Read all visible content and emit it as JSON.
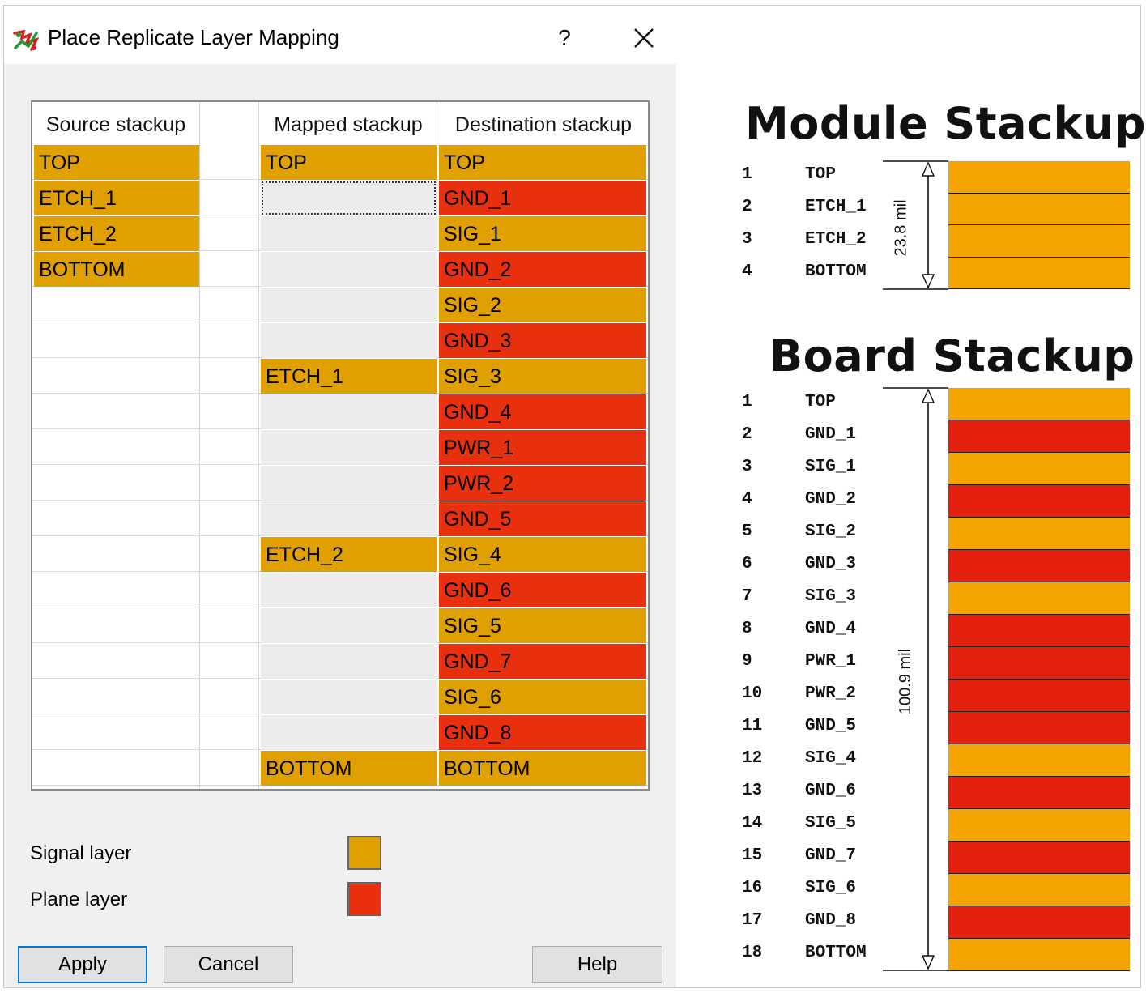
{
  "dialog": {
    "title": "Place Replicate Layer Mapping",
    "help_glyph": "?",
    "columns": {
      "source": "Source stackup",
      "mapped": "Mapped stackup",
      "destination": "Destination stackup"
    },
    "rows": [
      {
        "source": "TOP",
        "mapped": "TOP",
        "destination": "TOP",
        "dest_type": "signal"
      },
      {
        "source": "ETCH_1",
        "mapped": "",
        "destination": "GND_1",
        "dest_type": "plane"
      },
      {
        "source": "ETCH_2",
        "mapped": "",
        "destination": "SIG_1",
        "dest_type": "signal"
      },
      {
        "source": "BOTTOM",
        "mapped": "",
        "destination": "GND_2",
        "dest_type": "plane"
      },
      {
        "source": "",
        "mapped": "",
        "destination": "SIG_2",
        "dest_type": "signal"
      },
      {
        "source": "",
        "mapped": "",
        "destination": "GND_3",
        "dest_type": "plane"
      },
      {
        "source": "",
        "mapped": "ETCH_1",
        "destination": "SIG_3",
        "dest_type": "signal"
      },
      {
        "source": "",
        "mapped": "",
        "destination": "GND_4",
        "dest_type": "plane"
      },
      {
        "source": "",
        "mapped": "",
        "destination": "PWR_1",
        "dest_type": "plane"
      },
      {
        "source": "",
        "mapped": "",
        "destination": "PWR_2",
        "dest_type": "plane"
      },
      {
        "source": "",
        "mapped": "",
        "destination": "GND_5",
        "dest_type": "plane"
      },
      {
        "source": "",
        "mapped": "ETCH_2",
        "destination": "SIG_4",
        "dest_type": "signal"
      },
      {
        "source": "",
        "mapped": "",
        "destination": "GND_6",
        "dest_type": "plane"
      },
      {
        "source": "",
        "mapped": "",
        "destination": "SIG_5",
        "dest_type": "signal"
      },
      {
        "source": "",
        "mapped": "",
        "destination": "GND_7",
        "dest_type": "plane"
      },
      {
        "source": "",
        "mapped": "",
        "destination": "SIG_6",
        "dest_type": "signal"
      },
      {
        "source": "",
        "mapped": "",
        "destination": "GND_8",
        "dest_type": "plane"
      },
      {
        "source": "",
        "mapped": "BOTTOM",
        "destination": "BOTTOM",
        "dest_type": "signal"
      }
    ],
    "legend": {
      "signal_label": "Signal layer",
      "plane_label": "Plane layer"
    },
    "buttons": {
      "apply": "Apply",
      "cancel": "Cancel",
      "help": "Help"
    }
  },
  "colors": {
    "signal_cell": "#e0a000",
    "plane_cell": "#e8300e",
    "signal_band": "#f5a300",
    "plane_band": "#e3200c",
    "mapped_empty": "#ececec",
    "default_button_border": "#0078d7"
  },
  "module_stackup": {
    "title": "Module Stackup",
    "thickness": "23.8 mil",
    "layers": [
      {
        "num": "1",
        "name": "TOP",
        "type": "signal"
      },
      {
        "num": "2",
        "name": "ETCH_1",
        "type": "signal"
      },
      {
        "num": "3",
        "name": "ETCH_2",
        "type": "signal"
      },
      {
        "num": "4",
        "name": "BOTTOM",
        "type": "signal"
      }
    ]
  },
  "board_stackup": {
    "title": "Board Stackup",
    "thickness": "100.9 mil",
    "layers": [
      {
        "num": "1",
        "name": "TOP",
        "type": "signal"
      },
      {
        "num": "2",
        "name": "GND_1",
        "type": "plane"
      },
      {
        "num": "3",
        "name": "SIG_1",
        "type": "signal"
      },
      {
        "num": "4",
        "name": "GND_2",
        "type": "plane"
      },
      {
        "num": "5",
        "name": "SIG_2",
        "type": "signal"
      },
      {
        "num": "6",
        "name": "GND_3",
        "type": "plane"
      },
      {
        "num": "7",
        "name": "SIG_3",
        "type": "signal"
      },
      {
        "num": "8",
        "name": "GND_4",
        "type": "plane"
      },
      {
        "num": "9",
        "name": "PWR_1",
        "type": "plane"
      },
      {
        "num": "10",
        "name": "PWR_2",
        "type": "plane"
      },
      {
        "num": "11",
        "name": "GND_5",
        "type": "plane"
      },
      {
        "num": "12",
        "name": "SIG_4",
        "type": "signal"
      },
      {
        "num": "13",
        "name": "GND_6",
        "type": "plane"
      },
      {
        "num": "14",
        "name": "SIG_5",
        "type": "signal"
      },
      {
        "num": "15",
        "name": "GND_7",
        "type": "plane"
      },
      {
        "num": "16",
        "name": "SIG_6",
        "type": "signal"
      },
      {
        "num": "17",
        "name": "GND_8",
        "type": "plane"
      },
      {
        "num": "18",
        "name": "BOTTOM",
        "type": "signal"
      }
    ]
  },
  "icons": {
    "app": "replicate-icon",
    "close": "close-icon"
  }
}
